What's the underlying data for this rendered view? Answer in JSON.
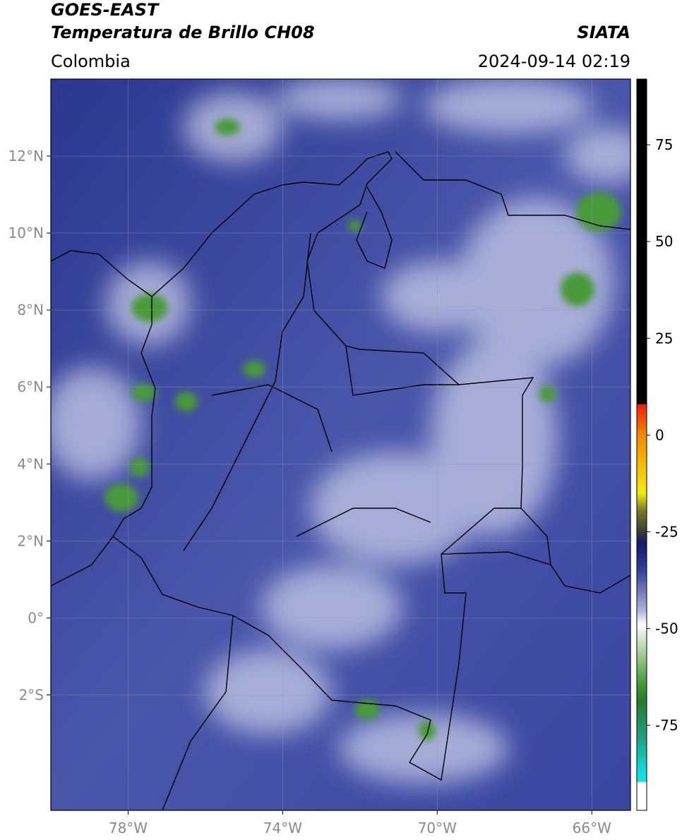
{
  "chart_data": {
    "type": "map",
    "title": "GOES-EAST",
    "subtitle": "Temperatura de Brillo CH08",
    "source": "SIATA",
    "region": "Colombia",
    "datetime": "2024-09-14 02:19",
    "xlim": [
      -80,
      -65
    ],
    "ylim": [
      -5,
      14
    ],
    "xticks": [
      {
        "value": -78,
        "label": "78°W"
      },
      {
        "value": -74,
        "label": "74°W"
      },
      {
        "value": -70,
        "label": "70°W"
      },
      {
        "value": -66,
        "label": "66°W"
      }
    ],
    "yticks": [
      {
        "value": 12,
        "label": "12°N"
      },
      {
        "value": 10,
        "label": "10°N"
      },
      {
        "value": 8,
        "label": "8°N"
      },
      {
        "value": 6,
        "label": "6°N"
      },
      {
        "value": 4,
        "label": "4°N"
      },
      {
        "value": 2,
        "label": "2°N"
      },
      {
        "value": 0,
        "label": "0°"
      },
      {
        "value": -2,
        "label": "2°S"
      }
    ],
    "grid": true,
    "colorbar": {
      "lim": [
        -97,
        92
      ],
      "ticks": [
        75,
        50,
        25,
        0,
        -25,
        -50,
        -75
      ]
    }
  }
}
